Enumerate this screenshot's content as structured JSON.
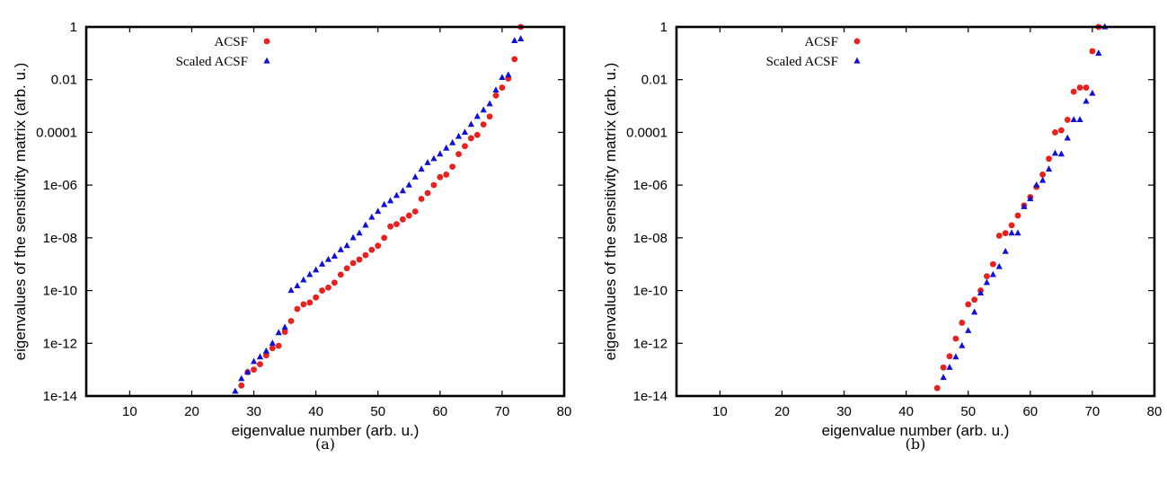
{
  "chart_data": [
    {
      "type": "scatter",
      "caption": "(a)",
      "xlabel": "eigenvalue number (arb. u.)",
      "ylabel": "eigenvalues of the sensitivity matrix (arb. u.)",
      "xlim": [
        3,
        80
      ],
      "ylim": [
        1e-14,
        1
      ],
      "yscale": "log",
      "xticks": [
        "10",
        "20",
        "30",
        "40",
        "50",
        "60",
        "70",
        "80"
      ],
      "yticks": [
        "1e-14",
        "1e-12",
        "1e-10",
        "1e-08",
        "1e-06",
        "0.0001",
        "0.01",
        "1"
      ],
      "legend_position": "top-left",
      "series": [
        {
          "name": "ACSF",
          "color": "#e8201e",
          "marker": "circle",
          "points": [
            [
              28,
              2.5e-14
            ],
            [
              29,
              8e-14
            ],
            [
              30,
              1e-13
            ],
            [
              31,
              1.6e-13
            ],
            [
              32,
              3.5e-13
            ],
            [
              33,
              6.5e-13
            ],
            [
              34,
              8e-13
            ],
            [
              35,
              2.7e-12
            ],
            [
              36,
              7e-12
            ],
            [
              37,
              2e-11
            ],
            [
              38,
              3e-11
            ],
            [
              39,
              3.5e-11
            ],
            [
              40,
              5.5e-11
            ],
            [
              41,
              1e-10
            ],
            [
              42,
              1.3e-10
            ],
            [
              43,
              2e-10
            ],
            [
              44,
              4e-10
            ],
            [
              45,
              7e-10
            ],
            [
              46,
              1.1e-09
            ],
            [
              47,
              1.5e-09
            ],
            [
              48,
              2.2e-09
            ],
            [
              49,
              3.5e-09
            ],
            [
              50,
              5e-09
            ],
            [
              51,
              1e-08
            ],
            [
              52,
              2.7e-08
            ],
            [
              53,
              3.3e-08
            ],
            [
              54,
              5e-08
            ],
            [
              55,
              7e-08
            ],
            [
              56,
              1e-07
            ],
            [
              57,
              3e-07
            ],
            [
              58,
              5e-07
            ],
            [
              59,
              1e-06
            ],
            [
              60,
              2e-06
            ],
            [
              61,
              2.5e-06
            ],
            [
              62,
              5e-06
            ],
            [
              63,
              1.5e-05
            ],
            [
              64,
              3e-05
            ],
            [
              65,
              6e-05
            ],
            [
              66,
              8e-05
            ],
            [
              67,
              0.0002
            ],
            [
              68,
              0.0004
            ],
            [
              69,
              0.0025
            ],
            [
              70,
              0.005
            ],
            [
              71,
              0.011
            ],
            [
              72,
              0.06
            ],
            [
              73,
              1
            ]
          ]
        },
        {
          "name": "Scaled ACSF",
          "color": "#1010d8",
          "marker": "triangle",
          "points": [
            [
              27,
              1.5e-14
            ],
            [
              28,
              4.5e-14
            ],
            [
              29,
              8e-14
            ],
            [
              30,
              2e-13
            ],
            [
              31,
              3e-13
            ],
            [
              32,
              5e-13
            ],
            [
              33,
              1e-12
            ],
            [
              34,
              2.5e-12
            ],
            [
              35,
              4e-12
            ],
            [
              36,
              1e-10
            ],
            [
              37,
              1.5e-10
            ],
            [
              38,
              2.5e-10
            ],
            [
              39,
              4e-10
            ],
            [
              40,
              6e-10
            ],
            [
              41,
              1e-09
            ],
            [
              42,
              1.5e-09
            ],
            [
              43,
              2e-09
            ],
            [
              44,
              3.5e-09
            ],
            [
              45,
              5e-09
            ],
            [
              46,
              1e-08
            ],
            [
              47,
              1.5e-08
            ],
            [
              48,
              3e-08
            ],
            [
              49,
              6e-08
            ],
            [
              50,
              1e-07
            ],
            [
              51,
              1.8e-07
            ],
            [
              52,
              2.5e-07
            ],
            [
              53,
              4e-07
            ],
            [
              54,
              6e-07
            ],
            [
              55,
              1e-06
            ],
            [
              56,
              2e-06
            ],
            [
              57,
              4e-06
            ],
            [
              58,
              7e-06
            ],
            [
              59,
              1e-05
            ],
            [
              60,
              1.5e-05
            ],
            [
              61,
              2.5e-05
            ],
            [
              62,
              4e-05
            ],
            [
              63,
              7e-05
            ],
            [
              64,
              0.0001
            ],
            [
              65,
              0.0002
            ],
            [
              66,
              0.0004
            ],
            [
              67,
              0.0007
            ],
            [
              68,
              0.0012
            ],
            [
              69,
              0.004
            ],
            [
              70,
              0.012
            ],
            [
              71,
              0.015
            ],
            [
              72,
              0.3
            ],
            [
              73,
              0.35
            ]
          ]
        }
      ]
    },
    {
      "type": "scatter",
      "caption": "(b)",
      "xlabel": "eigenvalue number (arb. u.)",
      "ylabel": "eigenvalues of the sensitivity matrix (arb. u.)",
      "xlim": [
        3,
        80
      ],
      "ylim": [
        1e-14,
        1
      ],
      "yscale": "log",
      "xticks": [
        "10",
        "20",
        "30",
        "40",
        "50",
        "60",
        "70",
        "80"
      ],
      "yticks": [
        "1e-14",
        "1e-12",
        "1e-10",
        "1e-08",
        "1e-06",
        "0.0001",
        "0.01",
        "1"
      ],
      "legend_position": "top-left",
      "series": [
        {
          "name": "ACSF",
          "color": "#e8201e",
          "marker": "circle",
          "points": [
            [
              45,
              2e-14
            ],
            [
              46,
              1.2e-13
            ],
            [
              47,
              3.2e-13
            ],
            [
              48,
              1.5e-12
            ],
            [
              49,
              6e-12
            ],
            [
              50,
              3e-11
            ],
            [
              51,
              4.5e-11
            ],
            [
              52,
              1e-10
            ],
            [
              53,
              3.5e-10
            ],
            [
              54,
              1e-09
            ],
            [
              55,
              1.2e-08
            ],
            [
              56,
              1.5e-08
            ],
            [
              57,
              3e-08
            ],
            [
              58,
              7e-08
            ],
            [
              59,
              1.7e-07
            ],
            [
              60,
              3.5e-07
            ],
            [
              61,
              8.5e-07
            ],
            [
              62,
              2.5e-06
            ],
            [
              63,
              1e-05
            ],
            [
              64,
              0.0001
            ],
            [
              65,
              0.00012
            ],
            [
              66,
              0.0003
            ],
            [
              67,
              0.0035
            ],
            [
              68,
              0.005
            ],
            [
              69,
              0.005
            ],
            [
              70,
              0.12
            ],
            [
              71,
              1
            ]
          ]
        },
        {
          "name": "Scaled ACSF",
          "color": "#1010d8",
          "marker": "triangle",
          "points": [
            [
              46,
              5e-14
            ],
            [
              47,
              1.2e-13
            ],
            [
              48,
              3e-13
            ],
            [
              49,
              8e-13
            ],
            [
              50,
              3e-12
            ],
            [
              51,
              1.5e-11
            ],
            [
              52,
              8e-11
            ],
            [
              53,
              2e-10
            ],
            [
              54,
              4e-10
            ],
            [
              55,
              8e-10
            ],
            [
              56,
              3e-09
            ],
            [
              57,
              1.5e-08
            ],
            [
              58,
              1.5e-08
            ],
            [
              59,
              1.5e-07
            ],
            [
              60,
              3e-07
            ],
            [
              61,
              1e-06
            ],
            [
              62,
              1.5e-06
            ],
            [
              63,
              4e-06
            ],
            [
              64,
              1.6e-05
            ],
            [
              65,
              1.5e-05
            ],
            [
              66,
              6e-05
            ],
            [
              67,
              0.0003
            ],
            [
              68,
              0.0003
            ],
            [
              69,
              0.0015
            ],
            [
              70,
              0.003
            ],
            [
              71,
              0.1
            ],
            [
              72,
              1
            ]
          ]
        }
      ]
    }
  ]
}
